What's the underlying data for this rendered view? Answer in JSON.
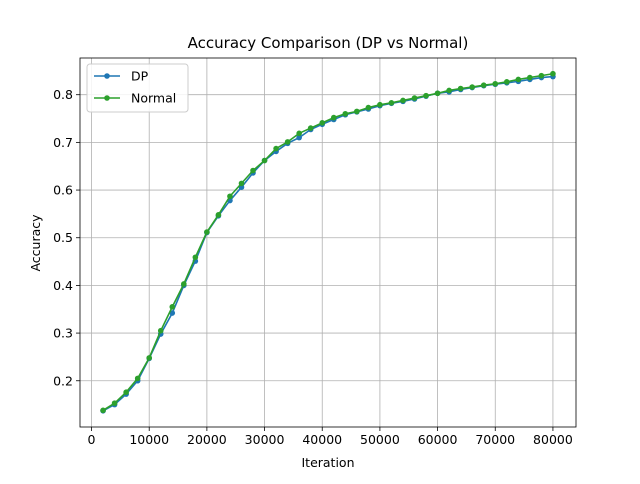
{
  "chart_data": {
    "type": "line",
    "title": "Accuracy Comparison (DP vs Normal)",
    "xlabel": "Iteration",
    "ylabel": "Accuracy",
    "xlim": [
      -2000,
      84000
    ],
    "ylim": [
      0.103,
      0.877
    ],
    "xticks": [
      0,
      10000,
      20000,
      30000,
      40000,
      50000,
      60000,
      70000,
      80000
    ],
    "yticks": [
      0.2,
      0.3,
      0.4,
      0.5,
      0.6,
      0.7,
      0.8
    ],
    "grid": true,
    "legend_position": "upper-left",
    "x": [
      2000,
      4000,
      6000,
      8000,
      10000,
      12000,
      14000,
      16000,
      18000,
      20000,
      22000,
      24000,
      26000,
      28000,
      30000,
      32000,
      34000,
      36000,
      38000,
      40000,
      42000,
      44000,
      46000,
      48000,
      50000,
      52000,
      54000,
      56000,
      58000,
      60000,
      62000,
      64000,
      66000,
      68000,
      70000,
      72000,
      74000,
      76000,
      78000,
      80000
    ],
    "series": [
      {
        "name": "DP",
        "color": "#1f77b4",
        "values": [
          0.137,
          0.15,
          0.172,
          0.2,
          0.247,
          0.298,
          0.342,
          0.4,
          0.451,
          0.511,
          0.546,
          0.578,
          0.606,
          0.636,
          0.662,
          0.681,
          0.698,
          0.71,
          0.727,
          0.738,
          0.748,
          0.758,
          0.764,
          0.77,
          0.777,
          0.782,
          0.786,
          0.791,
          0.797,
          0.803,
          0.806,
          0.811,
          0.815,
          0.819,
          0.822,
          0.825,
          0.828,
          0.832,
          0.836,
          0.838
        ]
      },
      {
        "name": "Normal",
        "color": "#2ca02c",
        "values": [
          0.138,
          0.153,
          0.176,
          0.205,
          0.248,
          0.305,
          0.355,
          0.403,
          0.459,
          0.512,
          0.548,
          0.587,
          0.614,
          0.641,
          0.662,
          0.687,
          0.701,
          0.719,
          0.73,
          0.741,
          0.752,
          0.76,
          0.765,
          0.773,
          0.779,
          0.783,
          0.788,
          0.793,
          0.798,
          0.803,
          0.809,
          0.813,
          0.816,
          0.82,
          0.823,
          0.827,
          0.832,
          0.836,
          0.84,
          0.844
        ]
      }
    ]
  }
}
